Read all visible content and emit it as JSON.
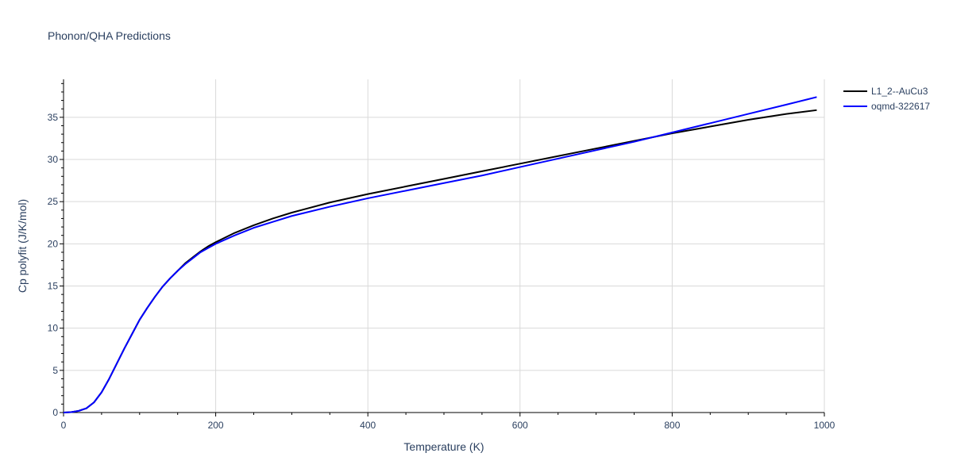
{
  "chart_data": {
    "type": "line",
    "title": "Phonon/QHA Predictions",
    "xlabel": "Temperature (K)",
    "ylabel": "Cp polyfit (J/K/mol)",
    "xlim": [
      0,
      1000
    ],
    "ylim": [
      0,
      39.5
    ],
    "xticks": [
      0,
      200,
      400,
      600,
      800,
      1000
    ],
    "yticks": [
      0,
      5,
      10,
      15,
      20,
      25,
      30,
      35
    ],
    "grid": true,
    "legend_position": "top-right",
    "series": [
      {
        "name": "L1_2--AuCu3",
        "color": "#000000",
        "x": [
          0,
          10,
          20,
          30,
          40,
          50,
          60,
          70,
          80,
          90,
          100,
          110,
          120,
          130,
          140,
          150,
          160,
          170,
          180,
          190,
          200,
          225,
          250,
          275,
          300,
          350,
          400,
          450,
          500,
          550,
          600,
          650,
          700,
          750,
          800,
          850,
          900,
          950,
          990
        ],
        "y": [
          0,
          0.05,
          0.2,
          0.5,
          1.2,
          2.4,
          4.0,
          5.8,
          7.6,
          9.3,
          11.0,
          12.4,
          13.7,
          14.9,
          15.9,
          16.8,
          17.7,
          18.4,
          19.1,
          19.7,
          20.2,
          21.3,
          22.2,
          23.0,
          23.7,
          24.9,
          25.9,
          26.8,
          27.7,
          28.6,
          29.5,
          30.4,
          31.3,
          32.2,
          33.1,
          33.9,
          34.7,
          35.4,
          35.85
        ]
      },
      {
        "name": "oqmd-322617",
        "color": "#0000ff",
        "x": [
          0,
          10,
          20,
          30,
          40,
          50,
          60,
          70,
          80,
          90,
          100,
          110,
          120,
          130,
          140,
          150,
          160,
          170,
          180,
          190,
          200,
          225,
          250,
          275,
          300,
          350,
          400,
          450,
          500,
          550,
          600,
          650,
          700,
          750,
          800,
          850,
          900,
          950,
          990
        ],
        "y": [
          0,
          0.05,
          0.2,
          0.5,
          1.2,
          2.4,
          4.0,
          5.8,
          7.6,
          9.3,
          11.0,
          12.4,
          13.7,
          14.9,
          15.9,
          16.8,
          17.6,
          18.3,
          19.0,
          19.5,
          20.0,
          21.0,
          21.9,
          22.6,
          23.3,
          24.4,
          25.4,
          26.3,
          27.2,
          28.1,
          29.1,
          30.1,
          31.1,
          32.1,
          33.2,
          34.3,
          35.4,
          36.5,
          37.4
        ]
      }
    ]
  }
}
